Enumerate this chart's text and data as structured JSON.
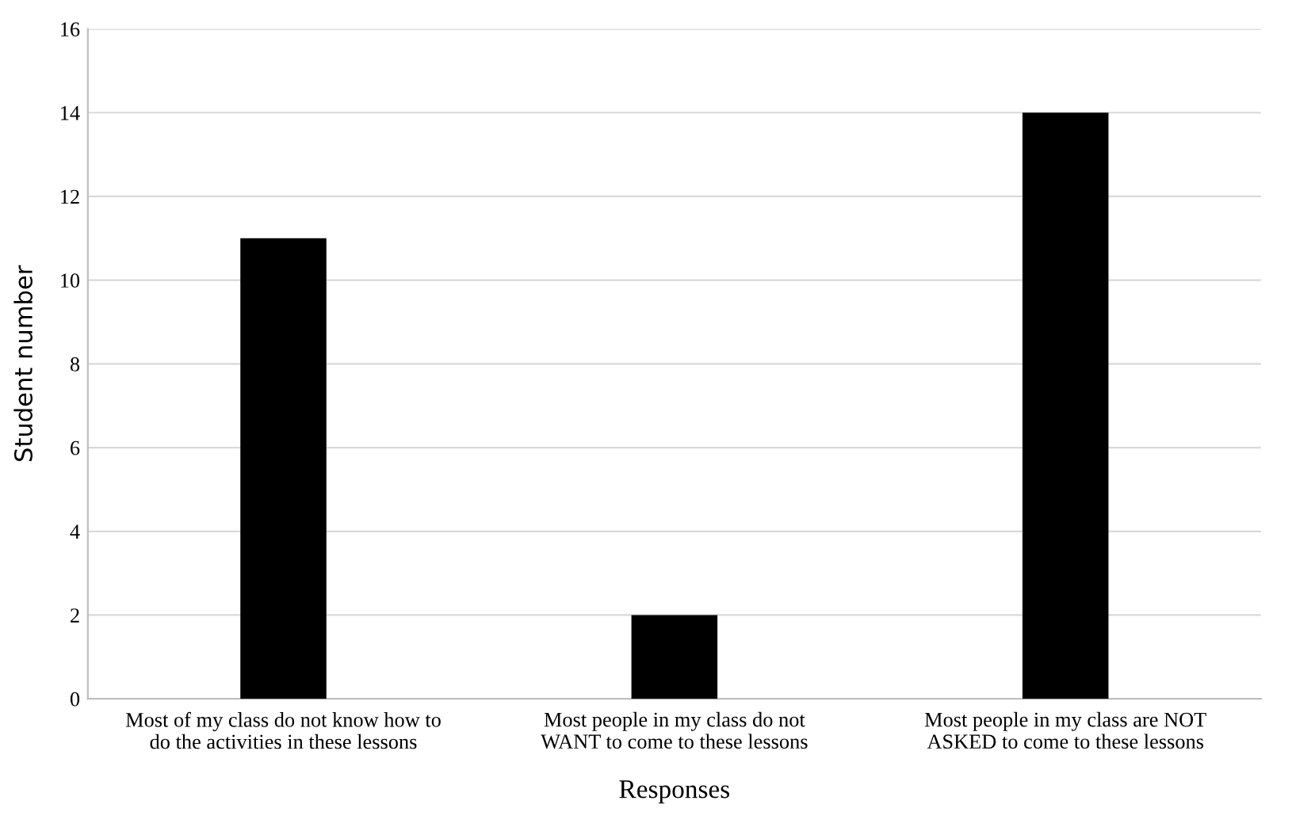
{
  "chart_data": {
    "type": "bar",
    "xlabel": "Responses",
    "ylabel": "Student number",
    "categories": [
      "Most of my class do not know how to\ndo the activities in these lessons",
      "Most people in my class do not\nWANT to come to these lessons",
      "Most people in my class are NOT\nASKED to come to these lessons"
    ],
    "values": [
      11,
      2,
      14
    ],
    "color": "#000000",
    "ylim": [
      0,
      16
    ],
    "yticks": [
      0,
      2,
      4,
      6,
      8,
      10,
      12,
      14,
      16
    ],
    "grid": "y"
  }
}
